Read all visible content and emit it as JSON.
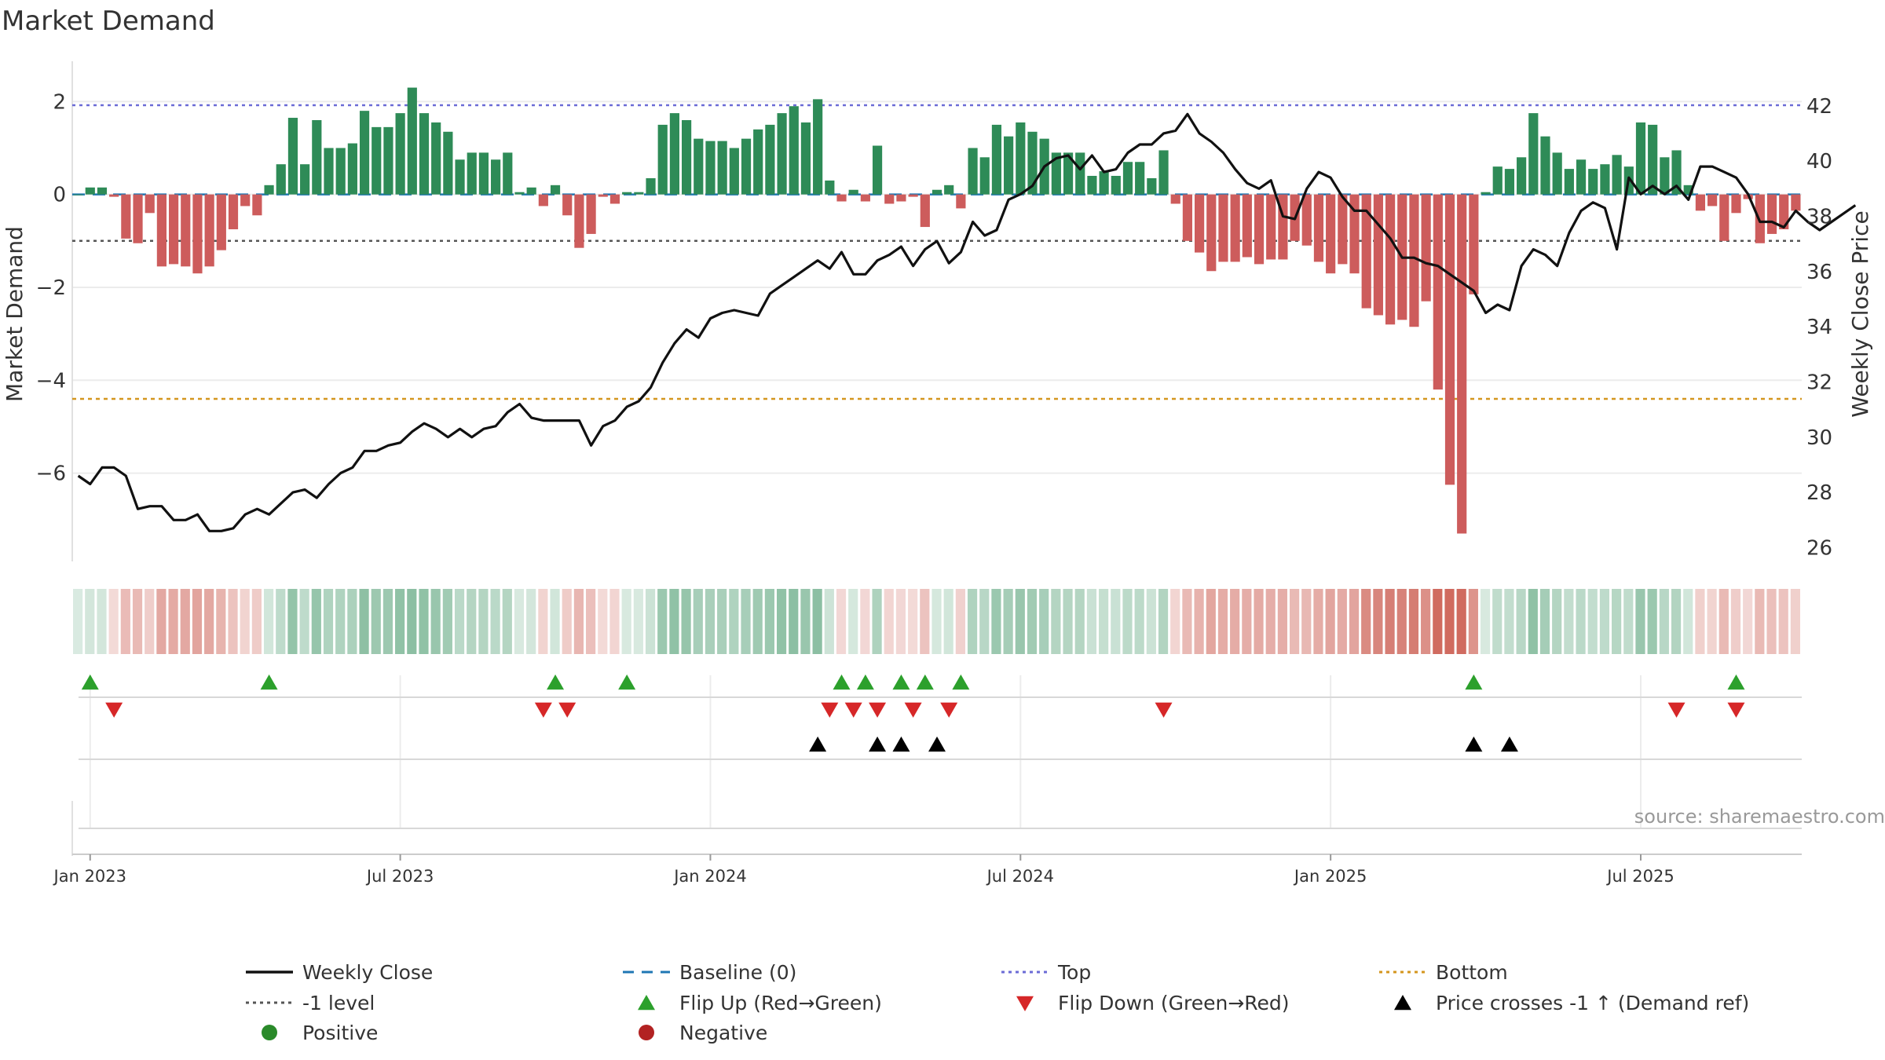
{
  "chart_data": {
    "type": "bar+line",
    "title": "Market Demand",
    "ylabel": "Market Demand",
    "ylabel_right": "Weekly Close Price",
    "source": "source: sharemaestro.com",
    "ylim": [
      -7.9,
      2.8
    ],
    "ylim_right": [
      25.5,
      43.5
    ],
    "yticks": [
      2,
      0,
      -2,
      -4,
      -6
    ],
    "yticks_right": [
      42,
      40,
      38,
      36,
      34,
      32,
      30,
      28,
      26
    ],
    "xticks": [
      "Jan 2023",
      "Jul 2023",
      "Jan 2024",
      "Jul 2024",
      "Jan 2025",
      "Jul 2025"
    ],
    "xtick_weeks": [
      1,
      27,
      53,
      79,
      105,
      131
    ],
    "reference_lines": {
      "top": 1.92,
      "minus_one": -1,
      "bottom": -4.4,
      "baseline": 0
    },
    "demand": [
      0.0,
      0.15,
      0.15,
      -0.05,
      -0.95,
      -1.05,
      -0.4,
      -1.55,
      -1.5,
      -1.55,
      -1.7,
      -1.55,
      -1.2,
      -0.75,
      -0.25,
      -0.45,
      0.2,
      0.65,
      1.65,
      0.65,
      1.6,
      1.0,
      1.0,
      1.1,
      1.8,
      1.45,
      1.45,
      1.75,
      2.3,
      1.75,
      1.55,
      1.35,
      0.75,
      0.9,
      0.9,
      0.75,
      0.9,
      0.05,
      0.15,
      -0.25,
      0.2,
      -0.45,
      -1.15,
      -0.85,
      -0.05,
      -0.2,
      0.05,
      0.05,
      0.35,
      1.5,
      1.75,
      1.6,
      1.2,
      1.15,
      1.15,
      1.0,
      1.2,
      1.4,
      1.5,
      1.75,
      1.9,
      1.55,
      2.05,
      0.3,
      -0.15,
      0.1,
      -0.15,
      1.05,
      -0.2,
      -0.15,
      -0.05,
      -0.7,
      0.1,
      0.2,
      -0.3,
      1.0,
      0.8,
      1.5,
      1.25,
      1.55,
      1.35,
      1.2,
      0.9,
      0.9,
      0.9,
      0.4,
      0.5,
      0.4,
      0.7,
      0.7,
      0.35,
      0.95,
      -0.2,
      -1.0,
      -1.25,
      -1.65,
      -1.45,
      -1.45,
      -1.35,
      -1.5,
      -1.4,
      -1.4,
      -1.0,
      -1.1,
      -1.45,
      -1.7,
      -1.5,
      -1.7,
      -2.45,
      -2.6,
      -2.8,
      -2.7,
      -2.85,
      -2.3,
      -4.2,
      -6.25,
      -7.3,
      -2.15,
      0.05,
      0.6,
      0.55,
      0.8,
      1.75,
      1.25,
      0.9,
      0.55,
      0.75,
      0.55,
      0.65,
      0.85,
      0.6,
      1.55,
      1.5,
      0.8,
      0.95,
      0.2,
      -0.35,
      -0.25,
      -1.0,
      -0.4,
      -0.1,
      -1.05,
      -0.85,
      -0.75,
      -0.35
    ],
    "price": [
      28.6,
      28.3,
      28.9,
      28.9,
      28.6,
      27.4,
      27.5,
      27.5,
      27.0,
      27.0,
      27.2,
      26.6,
      26.6,
      26.7,
      27.2,
      27.4,
      27.2,
      27.6,
      28.0,
      28.1,
      27.8,
      28.3,
      28.7,
      28.9,
      29.5,
      29.5,
      29.7,
      29.8,
      30.2,
      30.5,
      30.3,
      30.0,
      30.3,
      30.0,
      30.3,
      30.4,
      30.9,
      31.2,
      30.7,
      30.6,
      30.6,
      30.6,
      30.6,
      29.7,
      30.4,
      30.6,
      31.1,
      31.3,
      31.8,
      32.7,
      33.4,
      33.9,
      33.6,
      34.3,
      34.5,
      34.6,
      34.5,
      34.4,
      35.2,
      35.5,
      35.8,
      36.1,
      36.4,
      36.1,
      36.7,
      35.9,
      35.9,
      36.4,
      36.6,
      36.9,
      36.2,
      36.8,
      37.1,
      36.3,
      36.7,
      37.8,
      37.3,
      37.5,
      38.6,
      38.8,
      39.1,
      39.8,
      40.1,
      40.2,
      39.7,
      40.2,
      39.6,
      39.7,
      40.3,
      40.6,
      40.6,
      41.0,
      41.1,
      41.7,
      41.0,
      40.7,
      40.3,
      39.7,
      39.2,
      39.0,
      39.3,
      38.0,
      37.9,
      39.0,
      39.6,
      39.4,
      38.7,
      38.2,
      38.2,
      37.7,
      37.2,
      36.5,
      36.5,
      36.3,
      36.2,
      35.9,
      35.6,
      35.3,
      34.5,
      34.8,
      34.6,
      36.2,
      36.8,
      36.6,
      36.2,
      37.4,
      38.2,
      38.5,
      38.3,
      36.8,
      39.4,
      38.8,
      39.1,
      38.8,
      39.1,
      38.6,
      39.8,
      39.8,
      39.6,
      39.4,
      38.8,
      37.8,
      37.8,
      37.6,
      38.2,
      37.8,
      37.5,
      37.8,
      38.1,
      38.4
    ],
    "flip_up_weeks": [
      1,
      16,
      40,
      46,
      64,
      66,
      69,
      71,
      74,
      117,
      139
    ],
    "flip_down_weeks": [
      3,
      39,
      41,
      63,
      65,
      67,
      70,
      73,
      91,
      134,
      139
    ],
    "price_cross_weeks": [
      62,
      67,
      69,
      72,
      117,
      120
    ],
    "legend": [
      {
        "label": "Weekly Close",
        "color": "#111111"
      },
      {
        "label": "Baseline (0)",
        "color": "#1f77b4"
      },
      {
        "label": "Top",
        "color": "#6b6bd6"
      },
      {
        "label": "Bottom",
        "color": "#d4961e"
      },
      {
        "label": "-1 level",
        "color": "#555555"
      },
      {
        "label": "Flip Up (Red→Green)",
        "color": "#2ca02c"
      },
      {
        "label": "Flip Down (Green→Red)",
        "color": "#d62728"
      },
      {
        "label": "Price crosses -1 ↑ (Demand ref)",
        "color": "#000000"
      },
      {
        "label": "Positive",
        "color": "#2a8a2a"
      },
      {
        "label": "Negative",
        "color": "#b22222"
      }
    ],
    "colors": {
      "positive": "#2e8b57",
      "negative": "#cd5c5c",
      "price": "#111111",
      "flip_up": "#2ca02c",
      "flip_down": "#d62728",
      "cross": "#000000"
    }
  }
}
